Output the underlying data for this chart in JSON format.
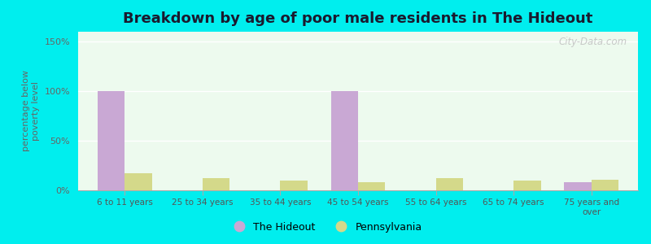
{
  "title": "Breakdown by age of poor male residents in The Hideout",
  "categories": [
    "6 to 11 years",
    "25 to 34 years",
    "35 to 44 years",
    "45 to 54 years",
    "55 to 64 years",
    "65 to 74 years",
    "75 years and\nover"
  ],
  "hideout_values": [
    100,
    0,
    0,
    100,
    0,
    0,
    8
  ],
  "pennsylvania_values": [
    17,
    12,
    10,
    8,
    12,
    10,
    11
  ],
  "hideout_color": "#c9a8d4",
  "pennsylvania_color": "#d4d98a",
  "ylabel": "percentage below\npoverty level",
  "ylim": [
    0,
    160
  ],
  "yticks": [
    0,
    50,
    100,
    150
  ],
  "ytick_labels": [
    "0%",
    "50%",
    "100%",
    "150%"
  ],
  "plot_bg_color": "#edfaee",
  "outer_bg_color": "#00eeee",
  "title_fontsize": 13,
  "bar_width": 0.35,
  "watermark": "City-Data.com"
}
